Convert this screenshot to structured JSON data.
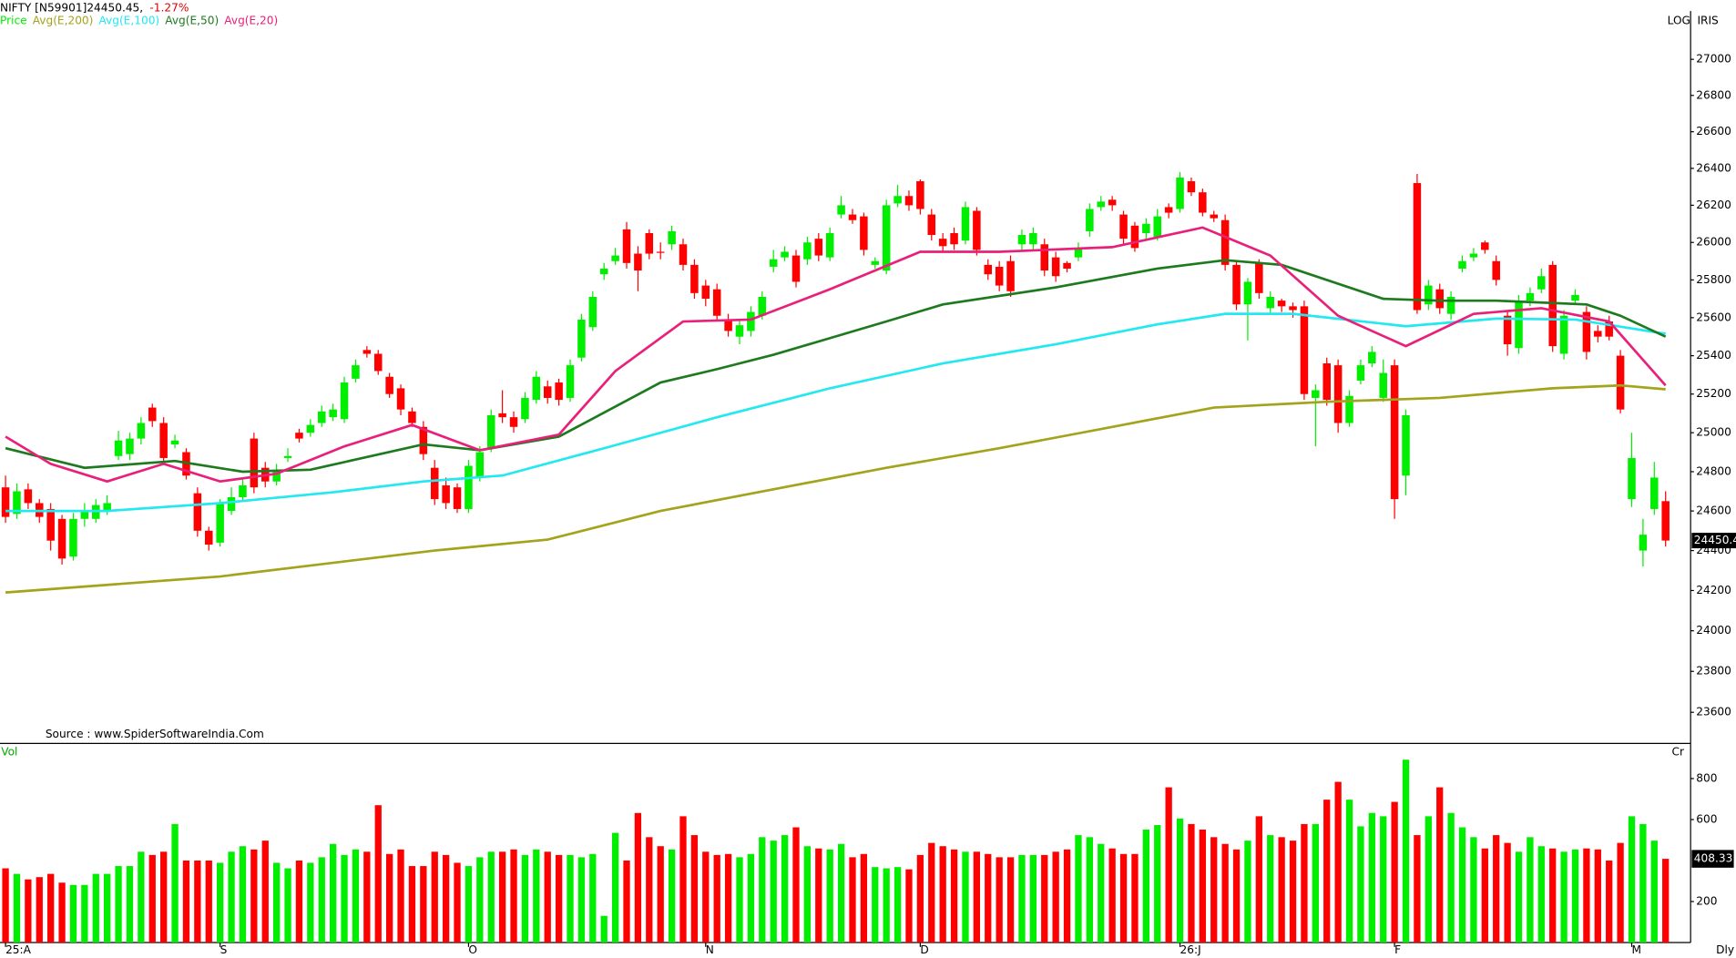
{
  "header": {
    "symbol_line": "NIFTY [N59901]24450.45,",
    "change": "-1.27%",
    "scale_mode": "LOG",
    "indicator": "IRIS",
    "source": "Source : www.SpiderSoftwareIndia.Com",
    "interval": "Dly"
  },
  "chart_data": [
    {
      "type": "candlestick",
      "log_scale": true,
      "legend_label": "Price",
      "up_color": "#00ee00",
      "down_color": "#ff0000",
      "open": [
        24720,
        24585,
        24710,
        24640,
        24610,
        24560,
        24370,
        24560,
        24560,
        24600,
        24880,
        24890,
        24970,
        25130,
        25050,
        24940,
        24900,
        24690,
        24500,
        24440,
        24600,
        24670,
        24970,
        24820,
        24750,
        24870,
        25000,
        25000,
        25050,
        25080,
        25070,
        25280,
        25430,
        25410,
        25290,
        25230,
        25110,
        25030,
        24820,
        24730,
        24720,
        24610,
        24770,
        24920,
        25100,
        25080,
        25070,
        25170,
        25240,
        25260,
        25180,
        25390,
        25550,
        25830,
        25900,
        26070,
        25940,
        26050,
        25950,
        25990,
        25990,
        25880,
        25770,
        25750,
        25590,
        25500,
        25530,
        25610,
        25870,
        25920,
        25930,
        25910,
        26020,
        25920,
        26150,
        26150,
        26140,
        25880,
        25850,
        26210,
        26250,
        26330,
        26150,
        26020,
        26050,
        26010,
        26170,
        25880,
        25870,
        25900,
        25990,
        25990,
        25990,
        25920,
        25890,
        25920,
        26060,
        26190,
        26230,
        26150,
        26090,
        26050,
        26030,
        26190,
        26180,
        26330,
        26270,
        26150,
        26120,
        25880,
        25670,
        25890,
        25650,
        25690,
        25660,
        25660,
        25180,
        25360,
        25350,
        25050,
        25270,
        25360,
        25180,
        25350,
        24780,
        26320,
        25670,
        25750,
        25620,
        25860,
        25920,
        26000,
        25900,
        25610,
        25440,
        25690,
        25750,
        25880,
        25410,
        25690,
        25630,
        25530,
        25580,
        25400,
        24660,
        24400,
        24610,
        24650
      ],
      "high": [
        24780,
        24740,
        24740,
        24660,
        24640,
        24580,
        24590,
        24640,
        24660,
        24680,
        25010,
        25000,
        25080,
        25150,
        25080,
        24990,
        24920,
        24720,
        24520,
        24660,
        24720,
        24760,
        25000,
        24850,
        24840,
        24920,
        25020,
        25070,
        25140,
        25150,
        25290,
        25380,
        25450,
        25430,
        25310,
        25250,
        25130,
        25060,
        24860,
        24770,
        24740,
        24860,
        24930,
        25120,
        25220,
        25110,
        25210,
        25320,
        25270,
        25280,
        25380,
        25620,
        25740,
        25890,
        25970,
        26110,
        25980,
        26070,
        26000,
        26090,
        26020,
        25910,
        25800,
        25780,
        25620,
        25590,
        25660,
        25740,
        25960,
        25980,
        25960,
        26030,
        26050,
        26080,
        26250,
        26180,
        26160,
        25920,
        26230,
        26310,
        26280,
        26340,
        26180,
        26050,
        26080,
        26220,
        26190,
        25910,
        25900,
        25930,
        26070,
        26080,
        26020,
        25950,
        25900,
        26000,
        26210,
        26250,
        26250,
        26170,
        26110,
        26130,
        26180,
        26210,
        26380,
        26350,
        26290,
        26170,
        26150,
        25900,
        25810,
        25910,
        25740,
        25700,
        25680,
        25690,
        25250,
        25390,
        25380,
        25220,
        25380,
        25450,
        25380,
        25380,
        25120,
        26370,
        25800,
        25780,
        25740,
        25930,
        25970,
        26010,
        25930,
        25640,
        25720,
        25760,
        25860,
        25900,
        25640,
        25750,
        25660,
        25560,
        25610,
        25430,
        25000,
        24560,
        24850,
        24700
      ],
      "low": [
        24540,
        24560,
        24610,
        24540,
        24400,
        24330,
        24350,
        24520,
        24540,
        24580,
        24860,
        24860,
        24940,
        25030,
        24840,
        24920,
        24760,
        24470,
        24400,
        24420,
        24580,
        24650,
        24690,
        24720,
        24730,
        24850,
        24950,
        24980,
        25030,
        25060,
        25050,
        25260,
        25390,
        25300,
        25180,
        25090,
        25030,
        24860,
        24630,
        24610,
        24590,
        24590,
        24750,
        24900,
        25050,
        25000,
        25050,
        25150,
        25150,
        25140,
        25160,
        25370,
        25530,
        25800,
        25880,
        25860,
        25740,
        25910,
        25910,
        25960,
        25850,
        25700,
        25660,
        25580,
        25500,
        25460,
        25500,
        25590,
        25840,
        25900,
        25760,
        25880,
        25900,
        25900,
        26130,
        26100,
        25930,
        25860,
        25830,
        26190,
        26170,
        26150,
        26010,
        25950,
        25960,
        25990,
        25930,
        25800,
        25740,
        25710,
        25960,
        25960,
        25820,
        25790,
        25840,
        25900,
        26030,
        26170,
        26170,
        25990,
        25950,
        26020,
        26010,
        26130,
        26160,
        26250,
        26140,
        26110,
        25850,
        25640,
        25480,
        25700,
        25620,
        25630,
        25600,
        25170,
        24930,
        25140,
        25000,
        25030,
        25250,
        25340,
        25160,
        24560,
        24680,
        25620,
        25640,
        25620,
        25590,
        25840,
        25900,
        25940,
        25770,
        25400,
        25410,
        25660,
        25730,
        25420,
        25380,
        25670,
        25380,
        25470,
        25480,
        25100,
        24620,
        24320,
        24580,
        24420
      ],
      "close": [
        24570,
        24700,
        24640,
        24570,
        24450,
        24360,
        24560,
        24600,
        24630,
        24640,
        24960,
        24970,
        25050,
        25060,
        24870,
        24960,
        24780,
        24500,
        24430,
        24640,
        24670,
        24730,
        24720,
        24750,
        24810,
        24880,
        24970,
        25040,
        25110,
        25120,
        25260,
        25350,
        25410,
        25320,
        25200,
        25120,
        25050,
        24890,
        24660,
        24640,
        24610,
        24830,
        24900,
        25090,
        25080,
        25030,
        25180,
        25290,
        25180,
        25170,
        25350,
        25590,
        25710,
        25860,
        25930,
        25890,
        25850,
        25940,
        25945,
        26060,
        25880,
        25730,
        25700,
        25610,
        25530,
        25560,
        25630,
        25710,
        25910,
        25950,
        25790,
        26000,
        25930,
        26050,
        26200,
        26120,
        25960,
        25900,
        26200,
        26250,
        26200,
        26180,
        26040,
        25980,
        25990,
        26190,
        25960,
        25830,
        25770,
        25740,
        26040,
        26050,
        25850,
        25820,
        25860,
        25970,
        26180,
        26220,
        26200,
        26020,
        25970,
        26100,
        26140,
        26160,
        26350,
        26270,
        26160,
        26130,
        25880,
        25670,
        25790,
        25730,
        25710,
        25660,
        25640,
        25200,
        25220,
        25170,
        25050,
        25190,
        25350,
        25420,
        25310,
        24660,
        25090,
        25640,
        25770,
        25650,
        25710,
        25900,
        25940,
        25960,
        25800,
        25460,
        25690,
        25730,
        25820,
        25450,
        25610,
        25720,
        25420,
        25500,
        25500,
        25120,
        24870,
        24480,
        24770,
        24450.45
      ],
      "ylim": [
        23460,
        27270
      ],
      "yticks": [
        23600,
        23800,
        24000,
        24200,
        24400,
        24600,
        24800,
        25000,
        25200,
        25400,
        25600,
        25800,
        26000,
        26200,
        26400,
        26600,
        26800,
        27000
      ],
      "xticks": [
        {
          "value": 0,
          "label": "25:A"
        },
        {
          "value": 19,
          "label": "S"
        },
        {
          "value": 41,
          "label": "O"
        },
        {
          "value": 62,
          "label": "N"
        },
        {
          "value": 81,
          "label": "D"
        },
        {
          "value": 104,
          "label": "26:J"
        },
        {
          "value": 123,
          "label": "F"
        },
        {
          "value": 144,
          "label": "M"
        }
      ],
      "series": [
        {
          "name": "Avg(E,200)",
          "color": "#a3a31c",
          "x": [
            0,
            19,
            38,
            48,
            58,
            68,
            78,
            88,
            98,
            107,
            117,
            127,
            137,
            143,
            147
          ],
          "values": [
            24190,
            24270,
            24400,
            24455,
            24600,
            24710,
            24820,
            24920,
            25030,
            25130,
            25160,
            25180,
            25230,
            25245,
            25225
          ]
        },
        {
          "name": "Avg(E,100)",
          "color": "#22e8f0",
          "x": [
            0,
            9,
            19,
            29,
            37,
            44,
            53,
            63,
            73,
            83,
            93,
            102,
            108,
            114,
            124,
            132,
            139,
            147
          ],
          "values": [
            24600,
            24600,
            24640,
            24695,
            24750,
            24780,
            24920,
            25080,
            25230,
            25360,
            25460,
            25565,
            25620,
            25620,
            25555,
            25595,
            25590,
            25515
          ]
        },
        {
          "name": "Avg(E,50)",
          "color": "#1e7a1e",
          "x": [
            0,
            7,
            15,
            21,
            27,
            37,
            42,
            49,
            58,
            63,
            68,
            78,
            83,
            93,
            102,
            108,
            113,
            122,
            127,
            132,
            140,
            143,
            147
          ],
          "values": [
            24920,
            24820,
            24855,
            24800,
            24810,
            24940,
            24910,
            24980,
            25260,
            25330,
            25405,
            25580,
            25670,
            25760,
            25860,
            25905,
            25880,
            25700,
            25690,
            25690,
            25670,
            25610,
            25500
          ]
        },
        {
          "name": "Avg(E,20)",
          "color": "#e8207a",
          "x": [
            0,
            4,
            9,
            14,
            19,
            24,
            30,
            36,
            42,
            49,
            54,
            60,
            66,
            73,
            81,
            88,
            98,
            106,
            112,
            118,
            124,
            130,
            136,
            142,
            147
          ],
          "values": [
            24980,
            24840,
            24750,
            24840,
            24750,
            24790,
            24930,
            25040,
            24910,
            24990,
            25320,
            25580,
            25590,
            25750,
            25950,
            25950,
            25975,
            26080,
            25930,
            25610,
            25450,
            25620,
            25650,
            25580,
            25245
          ]
        }
      ]
    },
    {
      "type": "bar",
      "title": "Vol",
      "unit_label": "Cr",
      "values": [
        362,
        335,
        308,
        319,
        335,
        292,
        281,
        281,
        335,
        335,
        373,
        373,
        443,
        427,
        443,
        578,
        400,
        400,
        400,
        389,
        443,
        470,
        454,
        497,
        389,
        362,
        400,
        389,
        416,
        481,
        427,
        454,
        443,
        670,
        432,
        454,
        373,
        373,
        443,
        427,
        389,
        373,
        416,
        443,
        443,
        454,
        427,
        454,
        443,
        427,
        427,
        416,
        432,
        130,
        535,
        400,
        632,
        514,
        470,
        454,
        616,
        524,
        443,
        427,
        432,
        416,
        432,
        514,
        497,
        524,
        562,
        470,
        459,
        454,
        481,
        416,
        432,
        368,
        362,
        368,
        357,
        427,
        486,
        470,
        454,
        443,
        443,
        432,
        416,
        416,
        427,
        427,
        427,
        443,
        454,
        524,
        514,
        481,
        459,
        432,
        432,
        551,
        573,
        757,
        605,
        578,
        551,
        514,
        481,
        454,
        497,
        616,
        524,
        514,
        497,
        578,
        578,
        697,
        784,
        697,
        567,
        632,
        616,
        686,
        892,
        524,
        616,
        757,
        632,
        562,
        514,
        459,
        524,
        486,
        443,
        514,
        470,
        459,
        443,
        454,
        459,
        454,
        400,
        486,
        616,
        578,
        497,
        408.33
      ],
      "ylim": [
        0,
        950
      ],
      "yticks": [
        200,
        600,
        800
      ]
    }
  ]
}
